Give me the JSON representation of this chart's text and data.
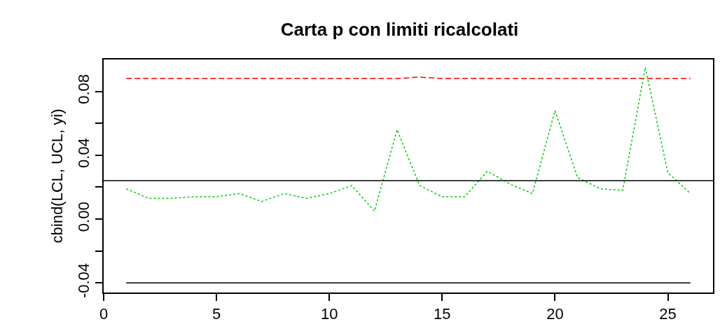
{
  "chart_data": {
    "type": "line",
    "title": "Carta p con limiti ricalcolati",
    "ylabel": "cbind(LCL, UCL, yi)",
    "x": [
      1,
      2,
      3,
      4,
      5,
      6,
      7,
      8,
      9,
      10,
      11,
      12,
      13,
      14,
      15,
      16,
      17,
      18,
      19,
      20,
      21,
      22,
      23,
      24,
      25,
      26
    ],
    "series": [
      {
        "color": "#000000",
        "line_style": "solid",
        "values": [
          -0.04,
          -0.04,
          -0.04,
          -0.04,
          -0.04,
          -0.04,
          -0.04,
          -0.04,
          -0.04,
          -0.04,
          -0.04,
          -0.04,
          -0.04,
          -0.04,
          -0.04,
          -0.04,
          -0.04,
          -0.04,
          -0.04,
          -0.04,
          -0.04,
          -0.04,
          -0.04,
          -0.04,
          -0.04,
          -0.04
        ]
      },
      {
        "color": "#ff0000",
        "line_style": "dashed",
        "values": [
          0.088,
          0.088,
          0.088,
          0.088,
          0.088,
          0.088,
          0.088,
          0.088,
          0.088,
          0.088,
          0.088,
          0.088,
          0.088,
          0.089,
          0.088,
          0.088,
          0.088,
          0.088,
          0.088,
          0.088,
          0.088,
          0.088,
          0.088,
          0.088,
          0.088,
          0.088
        ]
      },
      {
        "color": "#00cc00",
        "line_style": "dotted",
        "values": [
          0.019,
          0.013,
          0.013,
          0.014,
          0.014,
          0.016,
          0.011,
          0.016,
          0.013,
          0.016,
          0.021,
          0.005,
          0.056,
          0.021,
          0.014,
          0.014,
          0.03,
          0.022,
          0.016,
          0.068,
          0.026,
          0.019,
          0.018,
          0.095,
          0.029,
          0.016
        ]
      }
    ],
    "ref_lines": [
      {
        "axis": "y",
        "value": 0.024,
        "color": "#000000",
        "line_style": "solid"
      }
    ],
    "xlim": [
      0,
      27
    ],
    "xticks": [
      0,
      5,
      10,
      15,
      20,
      25
    ],
    "ylim": [
      -0.046,
      0.1
    ],
    "yticks": [
      {
        "value": -0.04,
        "label": "-0.04"
      },
      {
        "value": -0.02,
        "label": null
      },
      {
        "value": 0.0,
        "label": "0.00"
      },
      {
        "value": 0.02,
        "label": null
      },
      {
        "value": 0.04,
        "label": "0.04"
      },
      {
        "value": 0.06,
        "label": null
      },
      {
        "value": 0.08,
        "label": "0.08"
      }
    ],
    "marker": "none"
  }
}
